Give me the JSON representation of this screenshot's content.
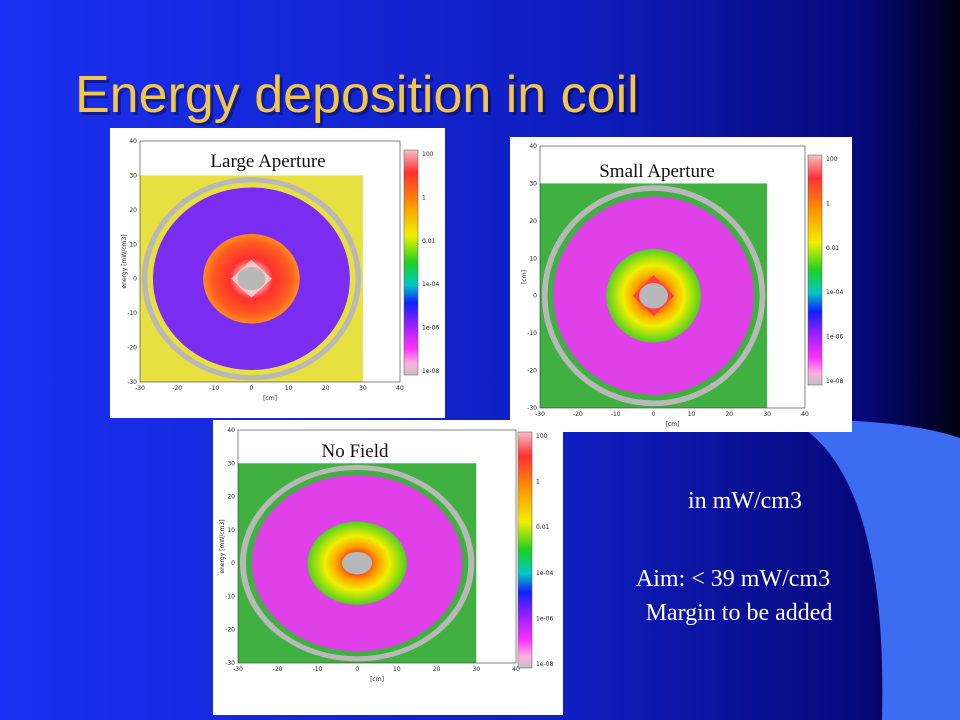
{
  "title": "Energy deposition in coil",
  "panels": [
    {
      "label": "Large Aperture",
      "y_label": "energy [mW/cm3]"
    },
    {
      "label": "Small Aperture",
      "y_label": "[cm]"
    },
    {
      "label": "No Field",
      "y_label": "energy [mW/cm3]"
    }
  ],
  "plot_axes": {
    "x_ticks": [
      "-30",
      "-20",
      "-10",
      "0",
      "10",
      "20",
      "30",
      "40"
    ],
    "y_ticks": [
      "40",
      "30",
      "20",
      "10",
      "0",
      "-10",
      "-20",
      "-30"
    ],
    "x_label": "[cm]",
    "colorbar_ticks": [
      "100",
      "1",
      "0.01",
      "1e-04",
      "1e-06",
      "1e-08"
    ]
  },
  "notes": [
    "in mW/cm3",
    "Aim: < 39 mW/cm3",
    "Margin to be added"
  ]
}
